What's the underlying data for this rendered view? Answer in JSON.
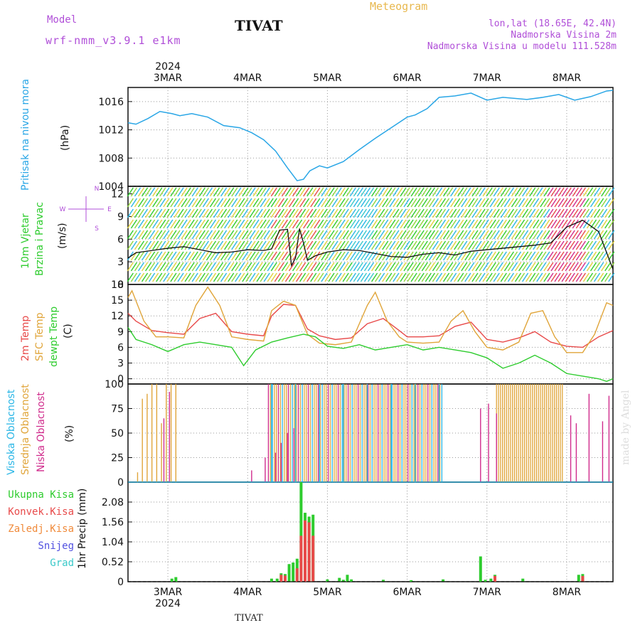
{
  "header": {
    "model_label": "Model",
    "model_name": "wrf-nmm_v3.9.1 e1km",
    "station_title": "TIVAT",
    "meteogram_label": "Meteogram",
    "coords": "lon,lat (18.65E, 42.4N)",
    "elevation": "Nadmorska Visina 2m",
    "model_elevation": "Nadmorska Visina u modelu 111.528m",
    "footer_station": "TIVAT",
    "watermark": "made by Angel"
  },
  "time_axis": {
    "year_top": "2024",
    "year_bottom": "2024",
    "days": [
      "3MAR",
      "4MAR",
      "5MAR",
      "6MAR",
      "7MAR",
      "8MAR"
    ],
    "range_days": [
      2.5,
      8.58
    ]
  },
  "panel_labels": {
    "pressure": [
      "Pritisak na nivou mora",
      "(hPa)"
    ],
    "wind": [
      "10m Vjetar",
      "Brzina i Pravac",
      "(m/s)"
    ],
    "wind_compass": [
      "N",
      "W",
      "E",
      "S"
    ],
    "temp": [
      "2m Temp",
      "SFC Temp",
      "dewpt Temp",
      "(C)"
    ],
    "cloud": [
      "Visoka Oblacnost",
      "Srednja Oblacnost",
      "Niska Oblacnost",
      "(%)"
    ],
    "precip": [
      "1hr Precip (mm)"
    ],
    "precip_legend": [
      "Ukupna Kisa",
      "Konvek.Kisa",
      "Zaledj.Kisa",
      "Snijeg",
      "Grad"
    ]
  },
  "colors": {
    "pressure": "#29a6e6",
    "temp2m": "#e84a4a",
    "sfc": "#e0a53a",
    "dew": "#2ecc2e",
    "high_cloud": "#29b6e6",
    "mid_cloud": "#e0a53a",
    "low_cloud": "#d02b8c",
    "total_rain": "#2ecc2e",
    "conv_rain": "#e84a4a",
    "freezing_rain": "#f08a3a",
    "snow": "#5050e0",
    "hail": "#3ac9c9",
    "purple_text": "#b04fd8",
    "meteogram": "#e8b84e"
  },
  "chart_data": [
    {
      "type": "line",
      "name": "pressure",
      "ylim": [
        1004,
        1018
      ],
      "yticks": [
        "1004",
        "1008",
        "1012",
        "1016"
      ],
      "series": [
        {
          "name": "Pritisak na nivou mora",
          "x": [
            2.5,
            2.6,
            2.75,
            2.9,
            3.05,
            3.15,
            3.3,
            3.5,
            3.7,
            3.9,
            4.05,
            4.2,
            4.35,
            4.5,
            4.62,
            4.7,
            4.78,
            4.9,
            5.0,
            5.2,
            5.4,
            5.6,
            5.8,
            6.0,
            6.1,
            6.25,
            6.4,
            6.6,
            6.8,
            7.0,
            7.2,
            7.5,
            7.7,
            7.9,
            8.1,
            8.3,
            8.5,
            8.58
          ],
          "y": [
            1013.0,
            1012.8,
            1013.6,
            1014.6,
            1014.3,
            1014.0,
            1014.3,
            1013.8,
            1012.6,
            1012.3,
            1011.6,
            1010.6,
            1009.0,
            1006.6,
            1004.8,
            1005.0,
            1006.2,
            1006.9,
            1006.6,
            1007.5,
            1009.2,
            1010.8,
            1012.3,
            1013.8,
            1014.1,
            1015.0,
            1016.6,
            1016.8,
            1017.2,
            1016.2,
            1016.6,
            1016.3,
            1016.6,
            1017.0,
            1016.2,
            1016.7,
            1017.5,
            1017.6
          ]
        }
      ]
    },
    {
      "type": "line",
      "name": "wind",
      "ylim": [
        0,
        13
      ],
      "yticks": [
        "0",
        "3",
        "6",
        "9",
        "12"
      ],
      "series": [
        {
          "name": "speed",
          "x": [
            2.5,
            2.6,
            2.8,
            3.0,
            3.2,
            3.4,
            3.6,
            3.8,
            4.0,
            4.2,
            4.3,
            4.4,
            4.5,
            4.55,
            4.6,
            4.65,
            4.7,
            4.75,
            4.85,
            5.0,
            5.2,
            5.4,
            5.6,
            5.8,
            6.0,
            6.2,
            6.4,
            6.6,
            6.8,
            7.0,
            7.2,
            7.4,
            7.6,
            7.8,
            8.0,
            8.2,
            8.4,
            8.58
          ],
          "y": [
            3.5,
            4.2,
            4.5,
            4.8,
            5.0,
            4.6,
            4.2,
            4.3,
            4.6,
            4.5,
            4.7,
            7.2,
            7.3,
            2.5,
            3.5,
            7.4,
            5.5,
            3.2,
            3.8,
            4.3,
            4.6,
            4.5,
            4.1,
            3.7,
            3.6,
            4.0,
            4.2,
            3.9,
            4.4,
            4.6,
            4.8,
            5.0,
            5.2,
            5.5,
            7.6,
            8.5,
            7.0,
            2.0
          ]
        }
      ]
    },
    {
      "type": "line",
      "name": "temperature",
      "ylim": [
        -1,
        18
      ],
      "yticks": [
        "0",
        "3",
        "6",
        "9",
        "12",
        "15",
        "18"
      ],
      "series": [
        {
          "name": "2m Temp",
          "x": [
            2.5,
            2.6,
            2.8,
            3.0,
            3.2,
            3.4,
            3.6,
            3.8,
            4.0,
            4.2,
            4.3,
            4.45,
            4.6,
            4.75,
            4.9,
            5.1,
            5.3,
            5.5,
            5.7,
            5.9,
            6.0,
            6.2,
            6.4,
            6.6,
            6.8,
            7.0,
            7.2,
            7.4,
            7.6,
            7.8,
            8.0,
            8.2,
            8.4,
            8.58
          ],
          "y": [
            12.5,
            11.0,
            9.2,
            8.8,
            8.5,
            11.5,
            12.5,
            9.0,
            8.5,
            8.2,
            12.0,
            14.2,
            14.0,
            9.5,
            8.2,
            7.5,
            7.8,
            10.5,
            11.5,
            9.2,
            8.0,
            8.0,
            8.2,
            10.0,
            10.8,
            7.5,
            7.0,
            7.8,
            9.0,
            7.0,
            6.2,
            6.0,
            8.0,
            9.2
          ]
        },
        {
          "name": "SFC Temp",
          "x": [
            2.5,
            2.55,
            2.7,
            2.85,
            3.0,
            3.2,
            3.35,
            3.5,
            3.65,
            3.8,
            4.0,
            4.2,
            4.3,
            4.45,
            4.6,
            4.75,
            4.9,
            5.1,
            5.3,
            5.5,
            5.6,
            5.75,
            5.9,
            6.0,
            6.2,
            6.4,
            6.55,
            6.7,
            6.85,
            7.0,
            7.2,
            7.4,
            7.55,
            7.7,
            7.85,
            8.0,
            8.2,
            8.35,
            8.5,
            8.58
          ],
          "y": [
            15.5,
            16.8,
            11.0,
            8.0,
            8.0,
            7.8,
            14.0,
            17.5,
            14.0,
            8.0,
            7.5,
            7.2,
            13.0,
            14.8,
            14.0,
            8.5,
            6.8,
            6.5,
            7.0,
            14.0,
            16.5,
            11.0,
            8.0,
            7.0,
            6.8,
            7.0,
            11.0,
            13.0,
            9.0,
            6.0,
            5.5,
            7.0,
            12.5,
            13.0,
            8.0,
            5.0,
            5.0,
            8.5,
            14.5,
            14.0
          ]
        },
        {
          "name": "dewpt Temp",
          "x": [
            2.5,
            2.6,
            2.8,
            3.0,
            3.2,
            3.4,
            3.6,
            3.8,
            3.95,
            4.1,
            4.3,
            4.5,
            4.7,
            4.85,
            5.0,
            5.2,
            5.4,
            5.6,
            5.8,
            6.0,
            6.2,
            6.4,
            6.6,
            6.8,
            7.0,
            7.2,
            7.4,
            7.6,
            7.8,
            8.0,
            8.2,
            8.4,
            8.5,
            8.58
          ],
          "y": [
            9.8,
            7.5,
            6.5,
            5.2,
            6.5,
            7.0,
            6.5,
            6.0,
            2.5,
            5.5,
            7.0,
            7.8,
            8.5,
            8.0,
            6.2,
            5.8,
            6.5,
            5.5,
            6.0,
            6.5,
            5.5,
            6.0,
            5.5,
            5.0,
            4.0,
            2.0,
            3.0,
            4.5,
            3.0,
            1.0,
            0.5,
            0.0,
            -0.5,
            0.0
          ]
        }
      ]
    },
    {
      "type": "bar",
      "name": "cloud cover",
      "ylim": [
        0,
        100
      ],
      "yticks": [
        "0",
        "25",
        "50",
        "75",
        "100"
      ],
      "series": [
        {
          "name": "Srednja Oblacnost",
          "x": [
            2.62,
            2.68,
            2.74,
            2.8,
            2.86,
            2.92,
            2.98,
            3.04,
            3.1
          ],
          "y": [
            10,
            85,
            90,
            100,
            100,
            60,
            100,
            100,
            100
          ]
        },
        {
          "name": "Niska Oblacnost",
          "x": [
            2.95,
            3.02,
            4.05,
            4.22,
            4.35,
            4.42,
            4.5,
            4.58,
            6.92,
            7.02,
            7.12,
            8.05,
            8.12,
            8.28,
            8.45,
            8.53
          ],
          "y": [
            65,
            92,
            12,
            25,
            30,
            40,
            50,
            55,
            75,
            80,
            70,
            68,
            60,
            90,
            62,
            88
          ]
        },
        {
          "name": "Visoka Oblacnost",
          "x": [
            4.3,
            4.6,
            4.9,
            5.2,
            5.5,
            5.8,
            6.1,
            6.4
          ],
          "y": [
            100,
            100,
            100,
            100,
            100,
            100,
            100,
            100
          ]
        }
      ],
      "bands": [
        {
          "name": "overcast band",
          "from": 4.26,
          "to": 6.46,
          "value": 100
        },
        {
          "name": "Srednja Oblacnost band",
          "from": 7.12,
          "to": 7.95,
          "value": 100
        }
      ]
    },
    {
      "type": "bar",
      "name": "precipitation",
      "ylim": [
        0,
        2.6
      ],
      "yticks": [
        "0",
        "0.52",
        "1.04",
        "1.56",
        "2.08"
      ],
      "series": [
        {
          "name": "Ukupna Kisa",
          "x": [
            3.05,
            3.1,
            4.3,
            4.37,
            4.42,
            4.47,
            4.52,
            4.57,
            4.62,
            4.67,
            4.72,
            4.77,
            4.82,
            5.0,
            5.15,
            5.2,
            5.25,
            5.3,
            5.7,
            6.05,
            6.45,
            6.92,
            6.98,
            7.05,
            7.1,
            7.45,
            8.15,
            8.2
          ],
          "y": [
            0.08,
            0.12,
            0.08,
            0.08,
            0.22,
            0.2,
            0.46,
            0.5,
            0.6,
            2.6,
            1.8,
            1.7,
            1.75,
            0.06,
            0.1,
            0.05,
            0.18,
            0.06,
            0.05,
            0.04,
            0.06,
            0.66,
            0.05,
            0.08,
            0.18,
            0.08,
            0.18,
            0.2
          ]
        },
        {
          "name": "Konvek.Kisa",
          "x": [
            4.42,
            4.47,
            4.62,
            4.67,
            4.72,
            4.77,
            4.82,
            7.1,
            8.2
          ],
          "y": [
            0.18,
            0.16,
            0.35,
            1.2,
            1.6,
            1.55,
            1.2,
            0.15,
            0.15
          ]
        }
      ]
    }
  ]
}
